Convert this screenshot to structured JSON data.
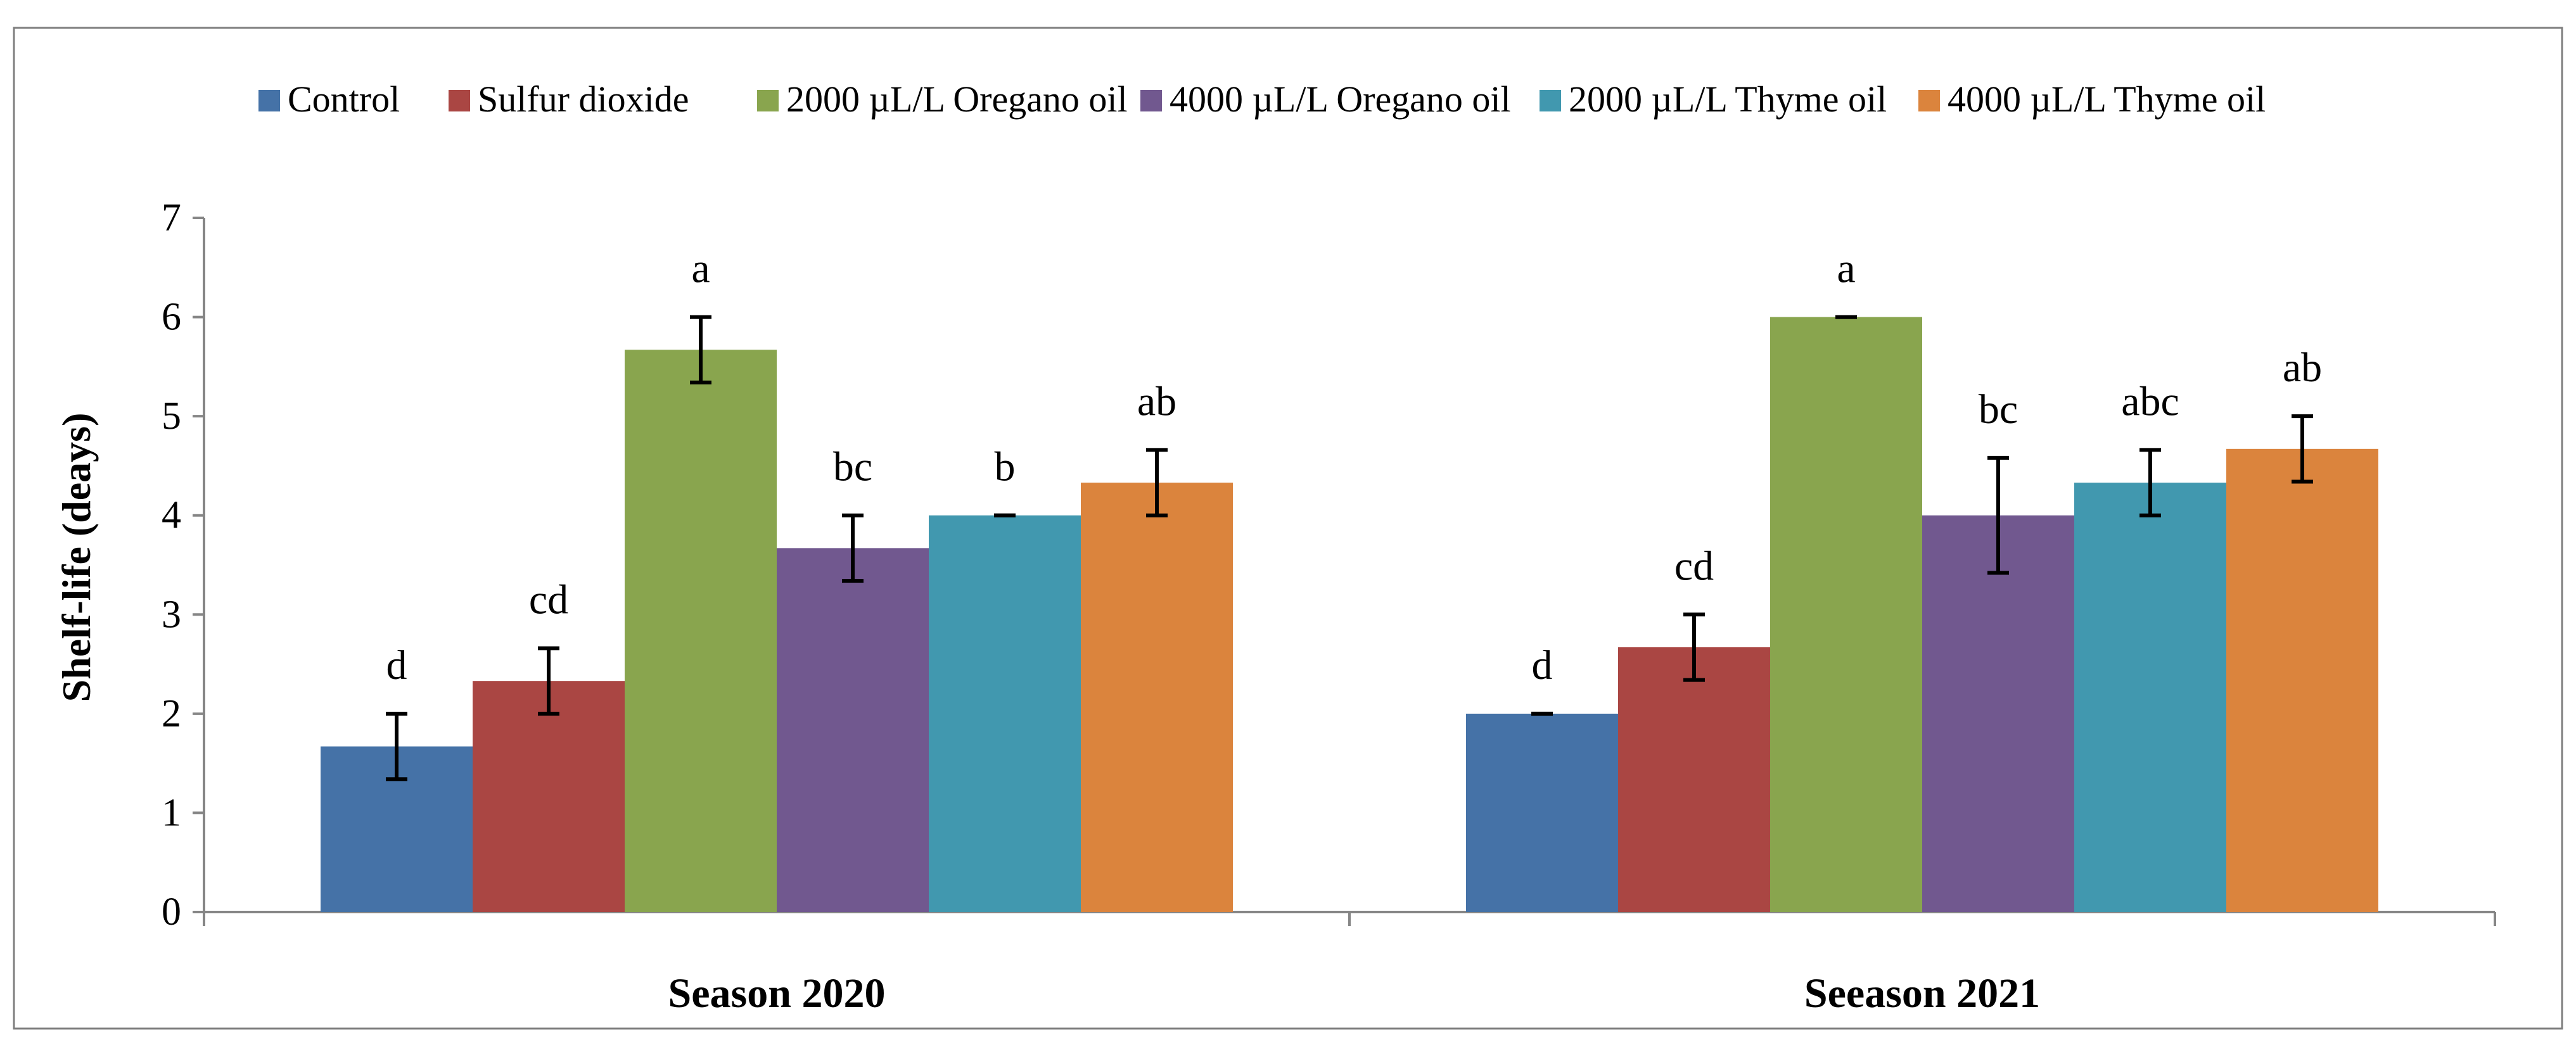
{
  "chart_data": {
    "type": "bar",
    "title": "",
    "xlabel": "",
    "ylabel": "Shelf-life (deays)",
    "ylim": [
      0,
      7
    ],
    "yticks": [
      0,
      1,
      2,
      3,
      4,
      5,
      6,
      7
    ],
    "grid": false,
    "legend_position": "top",
    "categories": [
      "Season 2020",
      "Seeason 2021"
    ],
    "series": [
      {
        "name": "Control",
        "color": "#4572A7",
        "values": [
          1.67,
          2.0
        ],
        "errors": [
          0.33,
          0.0
        ],
        "letters": [
          "d",
          "d"
        ]
      },
      {
        "name": "Sulfur dioxide",
        "color": "#AA4643",
        "values": [
          2.33,
          2.67
        ],
        "errors": [
          0.33,
          0.33
        ],
        "letters": [
          "cd",
          "cd"
        ]
      },
      {
        "name": "2000 µL/L Oregano oil",
        "color": "#89A54E",
        "values": [
          5.67,
          6.0
        ],
        "errors": [
          0.33,
          0.0
        ],
        "letters": [
          "a",
          "a"
        ]
      },
      {
        "name": "4000 µL/L Oregano oil",
        "color": "#71588F",
        "values": [
          3.67,
          4.0
        ],
        "errors": [
          0.33,
          0.58
        ],
        "letters": [
          "bc",
          "bc"
        ]
      },
      {
        "name": "2000 µL/L Thyme oil",
        "color": "#4198AF",
        "values": [
          4.0,
          4.33
        ],
        "errors": [
          0.0,
          0.33
        ],
        "letters": [
          "b",
          "abc"
        ]
      },
      {
        "name": "4000 µL/L Thyme oil",
        "color": "#DB843D",
        "values": [
          4.33,
          4.67
        ],
        "errors": [
          0.33,
          0.33
        ],
        "letters": [
          "ab",
          "ab"
        ]
      }
    ]
  }
}
